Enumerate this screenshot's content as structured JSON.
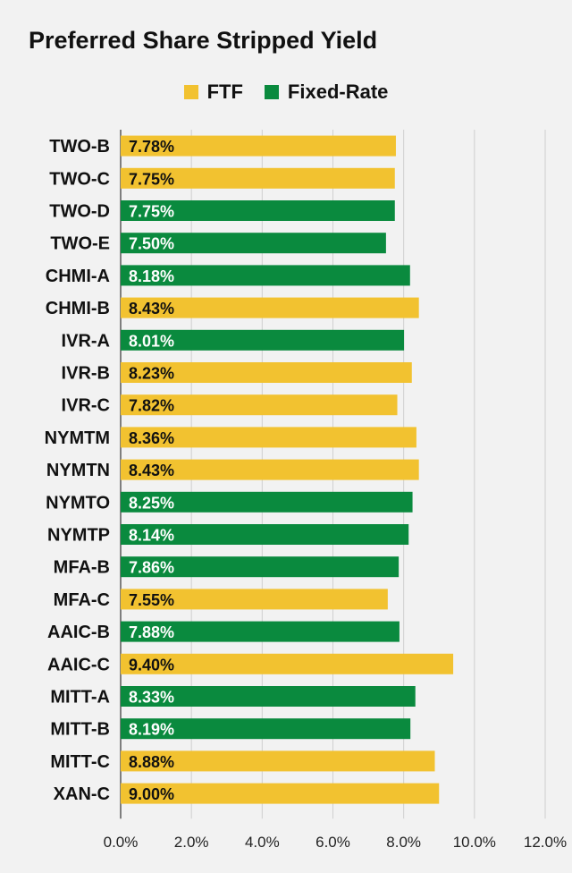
{
  "chart_data": {
    "type": "bar",
    "orientation": "horizontal",
    "title": "Preferred Share Stripped Yield",
    "legend": [
      {
        "name": "FTF",
        "color": "#f2c230"
      },
      {
        "name": "Fixed-Rate",
        "color": "#0a8a3e"
      }
    ],
    "legend_position": "top-center",
    "xlim": [
      0,
      12
    ],
    "x_ticks": [
      0,
      2,
      4,
      6,
      8,
      10,
      12
    ],
    "x_tick_labels": [
      "0.0%",
      "2.0%",
      "4.0%",
      "6.0%",
      "8.0%",
      "10.0%",
      "12.0%"
    ],
    "grid": "vertical",
    "categories": [
      "TWO-B",
      "TWO-C",
      "TWO-D",
      "TWO-E",
      "CHMI-A",
      "CHMI-B",
      "IVR-A",
      "IVR-B",
      "IVR-C",
      "NYMTM",
      "NYMTN",
      "NYMTO",
      "NYMTP",
      "MFA-B",
      "MFA-C",
      "AAIC-B",
      "AAIC-C",
      "MITT-A",
      "MITT-B",
      "MITT-C",
      "XAN-C"
    ],
    "values": [
      7.78,
      7.75,
      7.75,
      7.5,
      8.18,
      8.43,
      8.01,
      8.23,
      7.82,
      8.36,
      8.43,
      8.25,
      8.14,
      7.86,
      7.55,
      7.88,
      9.4,
      8.33,
      8.19,
      8.88,
      9.0
    ],
    "value_labels": [
      "7.78%",
      "7.75%",
      "7.75%",
      "7.50%",
      "8.18%",
      "8.43%",
      "8.01%",
      "8.23%",
      "7.82%",
      "8.36%",
      "8.43%",
      "8.25%",
      "8.14%",
      "7.86%",
      "7.55%",
      "7.88%",
      "9.40%",
      "8.33%",
      "8.19%",
      "8.88%",
      "9.00%"
    ],
    "series_type": [
      "FTF",
      "FTF",
      "Fixed-Rate",
      "Fixed-Rate",
      "Fixed-Rate",
      "FTF",
      "Fixed-Rate",
      "FTF",
      "FTF",
      "FTF",
      "FTF",
      "Fixed-Rate",
      "Fixed-Rate",
      "Fixed-Rate",
      "FTF",
      "Fixed-Rate",
      "FTF",
      "Fixed-Rate",
      "Fixed-Rate",
      "FTF",
      "FTF"
    ]
  }
}
